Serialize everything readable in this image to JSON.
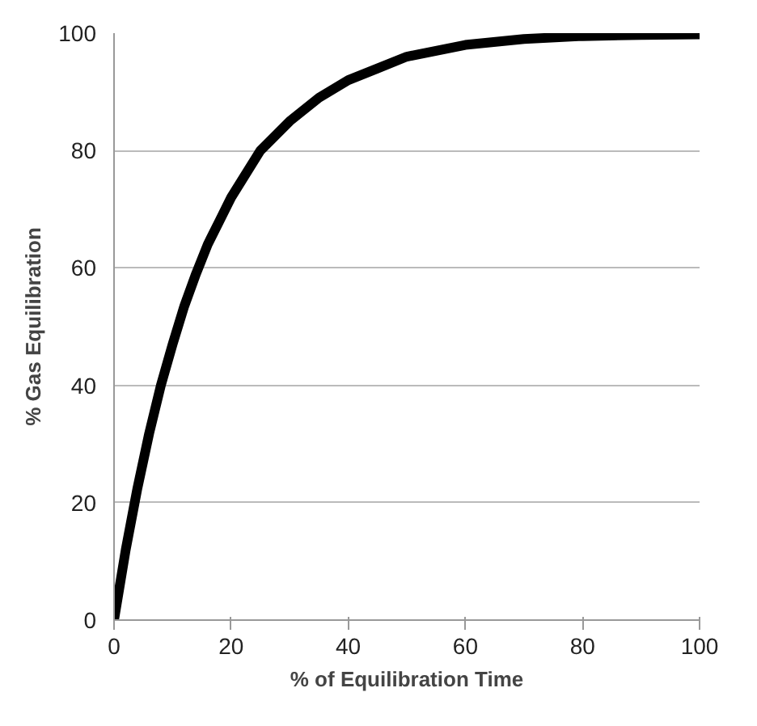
{
  "chart_data": {
    "type": "line",
    "xlabel": "% of Equilibration Time",
    "ylabel": "% Gas Equilibration",
    "x": [
      0,
      2,
      4,
      6,
      8,
      10,
      12,
      14,
      16,
      18,
      20,
      25,
      30,
      35,
      40,
      45,
      50,
      55,
      60,
      70,
      80,
      90,
      100
    ],
    "series": [
      {
        "color": "#000000",
        "values": [
          0,
          12,
          22.5,
          31.8,
          40,
          47,
          53.5,
          59,
          64,
          68,
          72,
          80,
          85,
          89,
          92,
          94,
          96,
          97,
          98,
          99,
          99.5,
          99.7,
          99.8
        ]
      }
    ],
    "xlim": [
      0,
      100
    ],
    "xticks": [
      0,
      20,
      40,
      60,
      80,
      100
    ],
    "ylim": [
      0,
      100
    ],
    "yticks": [
      0,
      20,
      40,
      60,
      80,
      100
    ],
    "grid": "y",
    "marker": "none",
    "line_style": "solid"
  }
}
